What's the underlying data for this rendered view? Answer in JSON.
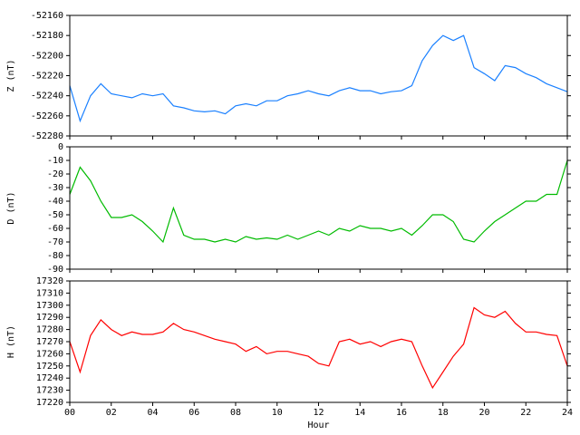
{
  "chart_data": [
    {
      "type": "line",
      "y_label": "Z (nT)",
      "color": "#1a80ff",
      "x": [
        0,
        0.5,
        1,
        1.5,
        2,
        2.5,
        3,
        3.5,
        4,
        4.5,
        5,
        5.5,
        6,
        6.5,
        7,
        7.5,
        8,
        8.5,
        9,
        9.5,
        10,
        10.5,
        11,
        11.5,
        12,
        12.5,
        13,
        13.5,
        14,
        14.5,
        15,
        15.5,
        16,
        16.5,
        17,
        17.5,
        18,
        18.5,
        19,
        19.5,
        20,
        20.5,
        21,
        21.5,
        22,
        22.5,
        23,
        23.5,
        24
      ],
      "values": [
        -52230,
        -52265,
        -52240,
        -52228,
        -52238,
        -52240,
        -52242,
        -52238,
        -52240,
        -52238,
        -52250,
        -52252,
        -52255,
        -52256,
        -52255,
        -52258,
        -52250,
        -52248,
        -52250,
        -52245,
        -52245,
        -52240,
        -52238,
        -52235,
        -52238,
        -52240,
        -52235,
        -52232,
        -52235,
        -52235,
        -52238,
        -52236,
        -52235,
        -52230,
        -52205,
        -52190,
        -52180,
        -52185,
        -52180,
        -52212,
        -52218,
        -52225,
        -52210,
        -52212,
        -52218,
        -52222,
        -52228,
        -52232,
        -52236
      ],
      "xlim": [
        0,
        24
      ],
      "ylim": [
        -52280,
        -52160
      ],
      "yticks": [
        -52280,
        -52260,
        -52240,
        -52220,
        -52200,
        -52180,
        -52160
      ]
    },
    {
      "type": "line",
      "y_label": "D (nT)",
      "color": "#00bb00",
      "x": [
        0,
        0.5,
        1,
        1.5,
        2,
        2.5,
        3,
        3.5,
        4,
        4.5,
        5,
        5.5,
        6,
        6.5,
        7,
        7.5,
        8,
        8.5,
        9,
        9.5,
        10,
        10.5,
        11,
        11.5,
        12,
        12.5,
        13,
        13.5,
        14,
        14.5,
        15,
        15.5,
        16,
        16.5,
        17,
        17.5,
        18,
        18.5,
        19,
        19.5,
        20,
        20.5,
        21,
        21.5,
        22,
        22.5,
        23,
        23.5,
        24
      ],
      "values": [
        -35,
        -15,
        -25,
        -40,
        -52,
        -52,
        -50,
        -55,
        -62,
        -70,
        -45,
        -65,
        -68,
        -68,
        -70,
        -68,
        -70,
        -66,
        -68,
        -67,
        -68,
        -65,
        -68,
        -65,
        -62,
        -65,
        -60,
        -62,
        -58,
        -60,
        -60,
        -62,
        -60,
        -65,
        -58,
        -50,
        -50,
        -55,
        -68,
        -70,
        -62,
        -55,
        -50,
        -45,
        -40,
        -40,
        -35,
        -35,
        -10
      ],
      "xlim": [
        0,
        24
      ],
      "ylim": [
        -90,
        0
      ],
      "yticks": [
        -90,
        -80,
        -70,
        -60,
        -50,
        -40,
        -30,
        -20,
        -10,
        0
      ]
    },
    {
      "type": "line",
      "y_label": "H (nT)",
      "x_label": "Hour",
      "color": "#ff0000",
      "x": [
        0,
        0.5,
        1,
        1.5,
        2,
        2.5,
        3,
        3.5,
        4,
        4.5,
        5,
        5.5,
        6,
        6.5,
        7,
        7.5,
        8,
        8.5,
        9,
        9.5,
        10,
        10.5,
        11,
        11.5,
        12,
        12.5,
        13,
        13.5,
        14,
        14.5,
        15,
        15.5,
        16,
        16.5,
        17,
        17.5,
        18,
        18.5,
        19,
        19.5,
        20,
        20.5,
        21,
        21.5,
        22,
        22.5,
        23,
        23.5,
        24
      ],
      "values": [
        17270,
        17245,
        17275,
        17288,
        17280,
        17275,
        17278,
        17276,
        17276,
        17278,
        17285,
        17280,
        17278,
        17275,
        17272,
        17270,
        17268,
        17262,
        17266,
        17260,
        17262,
        17262,
        17260,
        17258,
        17252,
        17250,
        17270,
        17272,
        17268,
        17270,
        17266,
        17270,
        17272,
        17270,
        17250,
        17232,
        17245,
        17258,
        17268,
        17298,
        17292,
        17290,
        17295,
        17285,
        17278,
        17278,
        17276,
        17275,
        17250
      ],
      "xlim": [
        0,
        24
      ],
      "ylim": [
        17220,
        17320
      ],
      "yticks": [
        17220,
        17230,
        17240,
        17250,
        17260,
        17270,
        17280,
        17290,
        17300,
        17310,
        17320
      ],
      "xticks": [
        {
          "value": 0,
          "label": "00"
        },
        {
          "value": 2,
          "label": "02"
        },
        {
          "value": 4,
          "label": "04"
        },
        {
          "value": 6,
          "label": "06"
        },
        {
          "value": 8,
          "label": "08"
        },
        {
          "value": 10,
          "label": "10"
        },
        {
          "value": 12,
          "label": "12"
        },
        {
          "value": 14,
          "label": "14"
        },
        {
          "value": 16,
          "label": "16"
        },
        {
          "value": 18,
          "label": "18"
        },
        {
          "value": 20,
          "label": "20"
        },
        {
          "value": 22,
          "label": "22"
        },
        {
          "value": 24,
          "label": "24"
        }
      ]
    }
  ]
}
